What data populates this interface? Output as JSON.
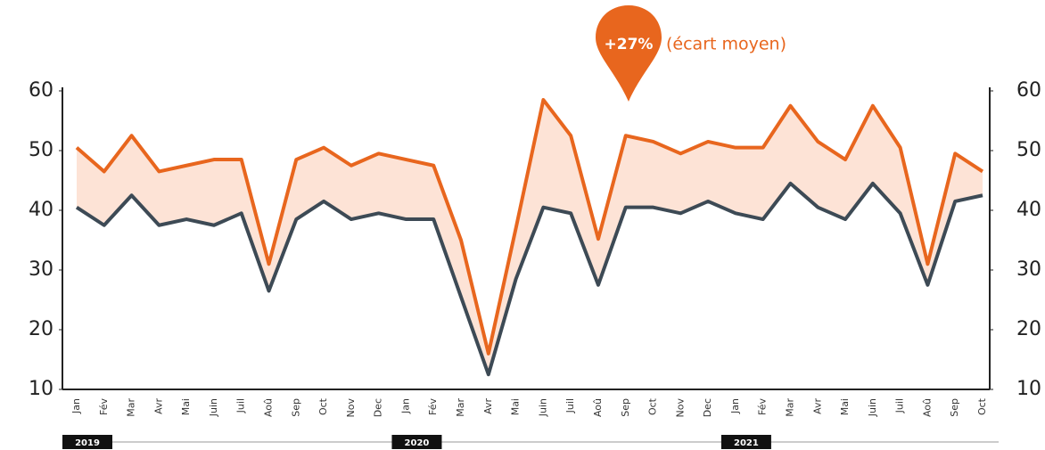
{
  "chart_data": {
    "type": "line",
    "annotation": {
      "value_text": "+27%",
      "text": "(écart moyen)"
    },
    "categories": [
      "Jan",
      "Fév",
      "Mar",
      "Avr",
      "Mai",
      "Juin",
      "Juil",
      "Aoû",
      "Sep",
      "Oct",
      "Nov",
      "Dec",
      "Jan",
      "Fév",
      "Mar",
      "Avr",
      "Mai",
      "Juin",
      "Juil",
      "Aoû",
      "Sep",
      "Oct",
      "Nov",
      "Dec",
      "Jan",
      "Fév",
      "Mar",
      "Avr",
      "Mai",
      "Juin",
      "Juil",
      "Aoû",
      "Sep",
      "Oct"
    ],
    "year_labels": [
      "2019",
      "2020",
      "2021"
    ],
    "series": [
      {
        "color": "#e8661e",
        "values": [
          50.5,
          46.5,
          52.5,
          46.5,
          47.5,
          48.5,
          48.5,
          31,
          48.5,
          50.5,
          47.5,
          49.5,
          48.5,
          47.5,
          35,
          16,
          37,
          58.5,
          52.5,
          35.2,
          52.5,
          51.5,
          49.5,
          51.5,
          50.5,
          50.5,
          57.5,
          51.5,
          48.5,
          57.5,
          50.5,
          31,
          49.5,
          46.5
        ]
      },
      {
        "color": "#3d4a55",
        "values": [
          40.5,
          37.5,
          42.5,
          37.5,
          38.5,
          37.5,
          39.5,
          26.5,
          38.5,
          41.5,
          38.5,
          39.5,
          38.5,
          38.5,
          25.5,
          12.5,
          28.5,
          40.5,
          39.5,
          27.5,
          40.5,
          40.5,
          39.5,
          41.5,
          39.5,
          38.5,
          44.5,
          40.5,
          38.5,
          44.5,
          39.5,
          27.5,
          41.5,
          42.5
        ]
      }
    ],
    "fill_between_color": "#fde3d6",
    "ylim": [
      10,
      60
    ],
    "yticks": [
      10,
      20,
      30,
      40,
      50,
      60
    ],
    "y2lim": [
      10,
      60
    ],
    "y2ticks": [
      10,
      20,
      30,
      40,
      50,
      60
    ],
    "grid": false
  }
}
